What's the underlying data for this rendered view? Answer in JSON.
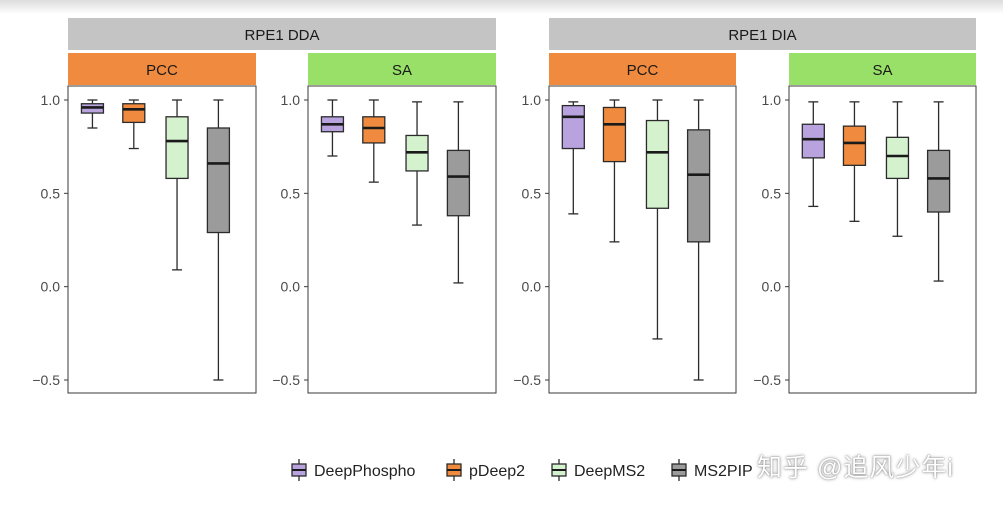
{
  "watermark": "知乎 @追风少年i",
  "chart_data": {
    "type": "boxplot",
    "ylim": [
      -0.5,
      1.0
    ],
    "yticks": [
      -0.5,
      0.0,
      0.5,
      1.0
    ],
    "ytick_labels": [
      "−0.5",
      "0.0",
      "0.5",
      "1.0"
    ],
    "groups": [
      {
        "label": "RPE1 DDA",
        "panels": [
          {
            "label": "PCC",
            "color": "#F08A3E",
            "boxes": [
              {
                "tool": "DeepPhospho",
                "min": 0.85,
                "q1": 0.93,
                "median": 0.96,
                "q3": 0.98,
                "max": 1.0
              },
              {
                "tool": "pDeep2",
                "min": 0.74,
                "q1": 0.88,
                "median": 0.95,
                "q3": 0.98,
                "max": 1.0
              },
              {
                "tool": "DeepMS2",
                "min": 0.09,
                "q1": 0.58,
                "median": 0.78,
                "q3": 0.91,
                "max": 1.0
              },
              {
                "tool": "MS2PIP",
                "min": -0.5,
                "q1": 0.29,
                "median": 0.66,
                "q3": 0.85,
                "max": 1.0
              }
            ]
          },
          {
            "label": "SA",
            "color": "#98E067",
            "boxes": [
              {
                "tool": "DeepPhospho",
                "min": 0.7,
                "q1": 0.83,
                "median": 0.87,
                "q3": 0.91,
                "max": 1.0
              },
              {
                "tool": "pDeep2",
                "min": 0.56,
                "q1": 0.77,
                "median": 0.85,
                "q3": 0.91,
                "max": 1.0
              },
              {
                "tool": "DeepMS2",
                "min": 0.33,
                "q1": 0.62,
                "median": 0.72,
                "q3": 0.81,
                "max": 0.99
              },
              {
                "tool": "MS2PIP",
                "min": 0.02,
                "q1": 0.38,
                "median": 0.59,
                "q3": 0.73,
                "max": 0.99
              }
            ]
          }
        ]
      },
      {
        "label": "RPE1 DIA",
        "panels": [
          {
            "label": "PCC",
            "color": "#F08A3E",
            "boxes": [
              {
                "tool": "DeepPhospho",
                "min": 0.39,
                "q1": 0.74,
                "median": 0.91,
                "q3": 0.97,
                "max": 0.99
              },
              {
                "tool": "pDeep2",
                "min": 0.24,
                "q1": 0.67,
                "median": 0.87,
                "q3": 0.96,
                "max": 1.0
              },
              {
                "tool": "DeepMS2",
                "min": -0.28,
                "q1": 0.42,
                "median": 0.72,
                "q3": 0.89,
                "max": 1.0
              },
              {
                "tool": "MS2PIP",
                "min": -0.5,
                "q1": 0.24,
                "median": 0.6,
                "q3": 0.84,
                "max": 1.0
              }
            ]
          },
          {
            "label": "SA",
            "color": "#98E067",
            "boxes": [
              {
                "tool": "DeepPhospho",
                "min": 0.43,
                "q1": 0.69,
                "median": 0.79,
                "q3": 0.87,
                "max": 0.99
              },
              {
                "tool": "pDeep2",
                "min": 0.35,
                "q1": 0.65,
                "median": 0.77,
                "q3": 0.86,
                "max": 0.99
              },
              {
                "tool": "DeepMS2",
                "min": 0.27,
                "q1": 0.58,
                "median": 0.7,
                "q3": 0.8,
                "max": 0.99
              },
              {
                "tool": "MS2PIP",
                "min": 0.03,
                "q1": 0.4,
                "median": 0.58,
                "q3": 0.73,
                "max": 0.99
              }
            ]
          }
        ]
      }
    ],
    "legend": {
      "position": "bottom",
      "items": [
        {
          "label": "DeepPhospho",
          "color": "#B9A3DF"
        },
        {
          "label": "pDeep2",
          "color": "#F08A3E"
        },
        {
          "label": "DeepMS2",
          "color": "#D5F2CF"
        },
        {
          "label": "MS2PIP",
          "color": "#9B9B9B"
        }
      ]
    },
    "strip_color": "#C4C4C4"
  }
}
